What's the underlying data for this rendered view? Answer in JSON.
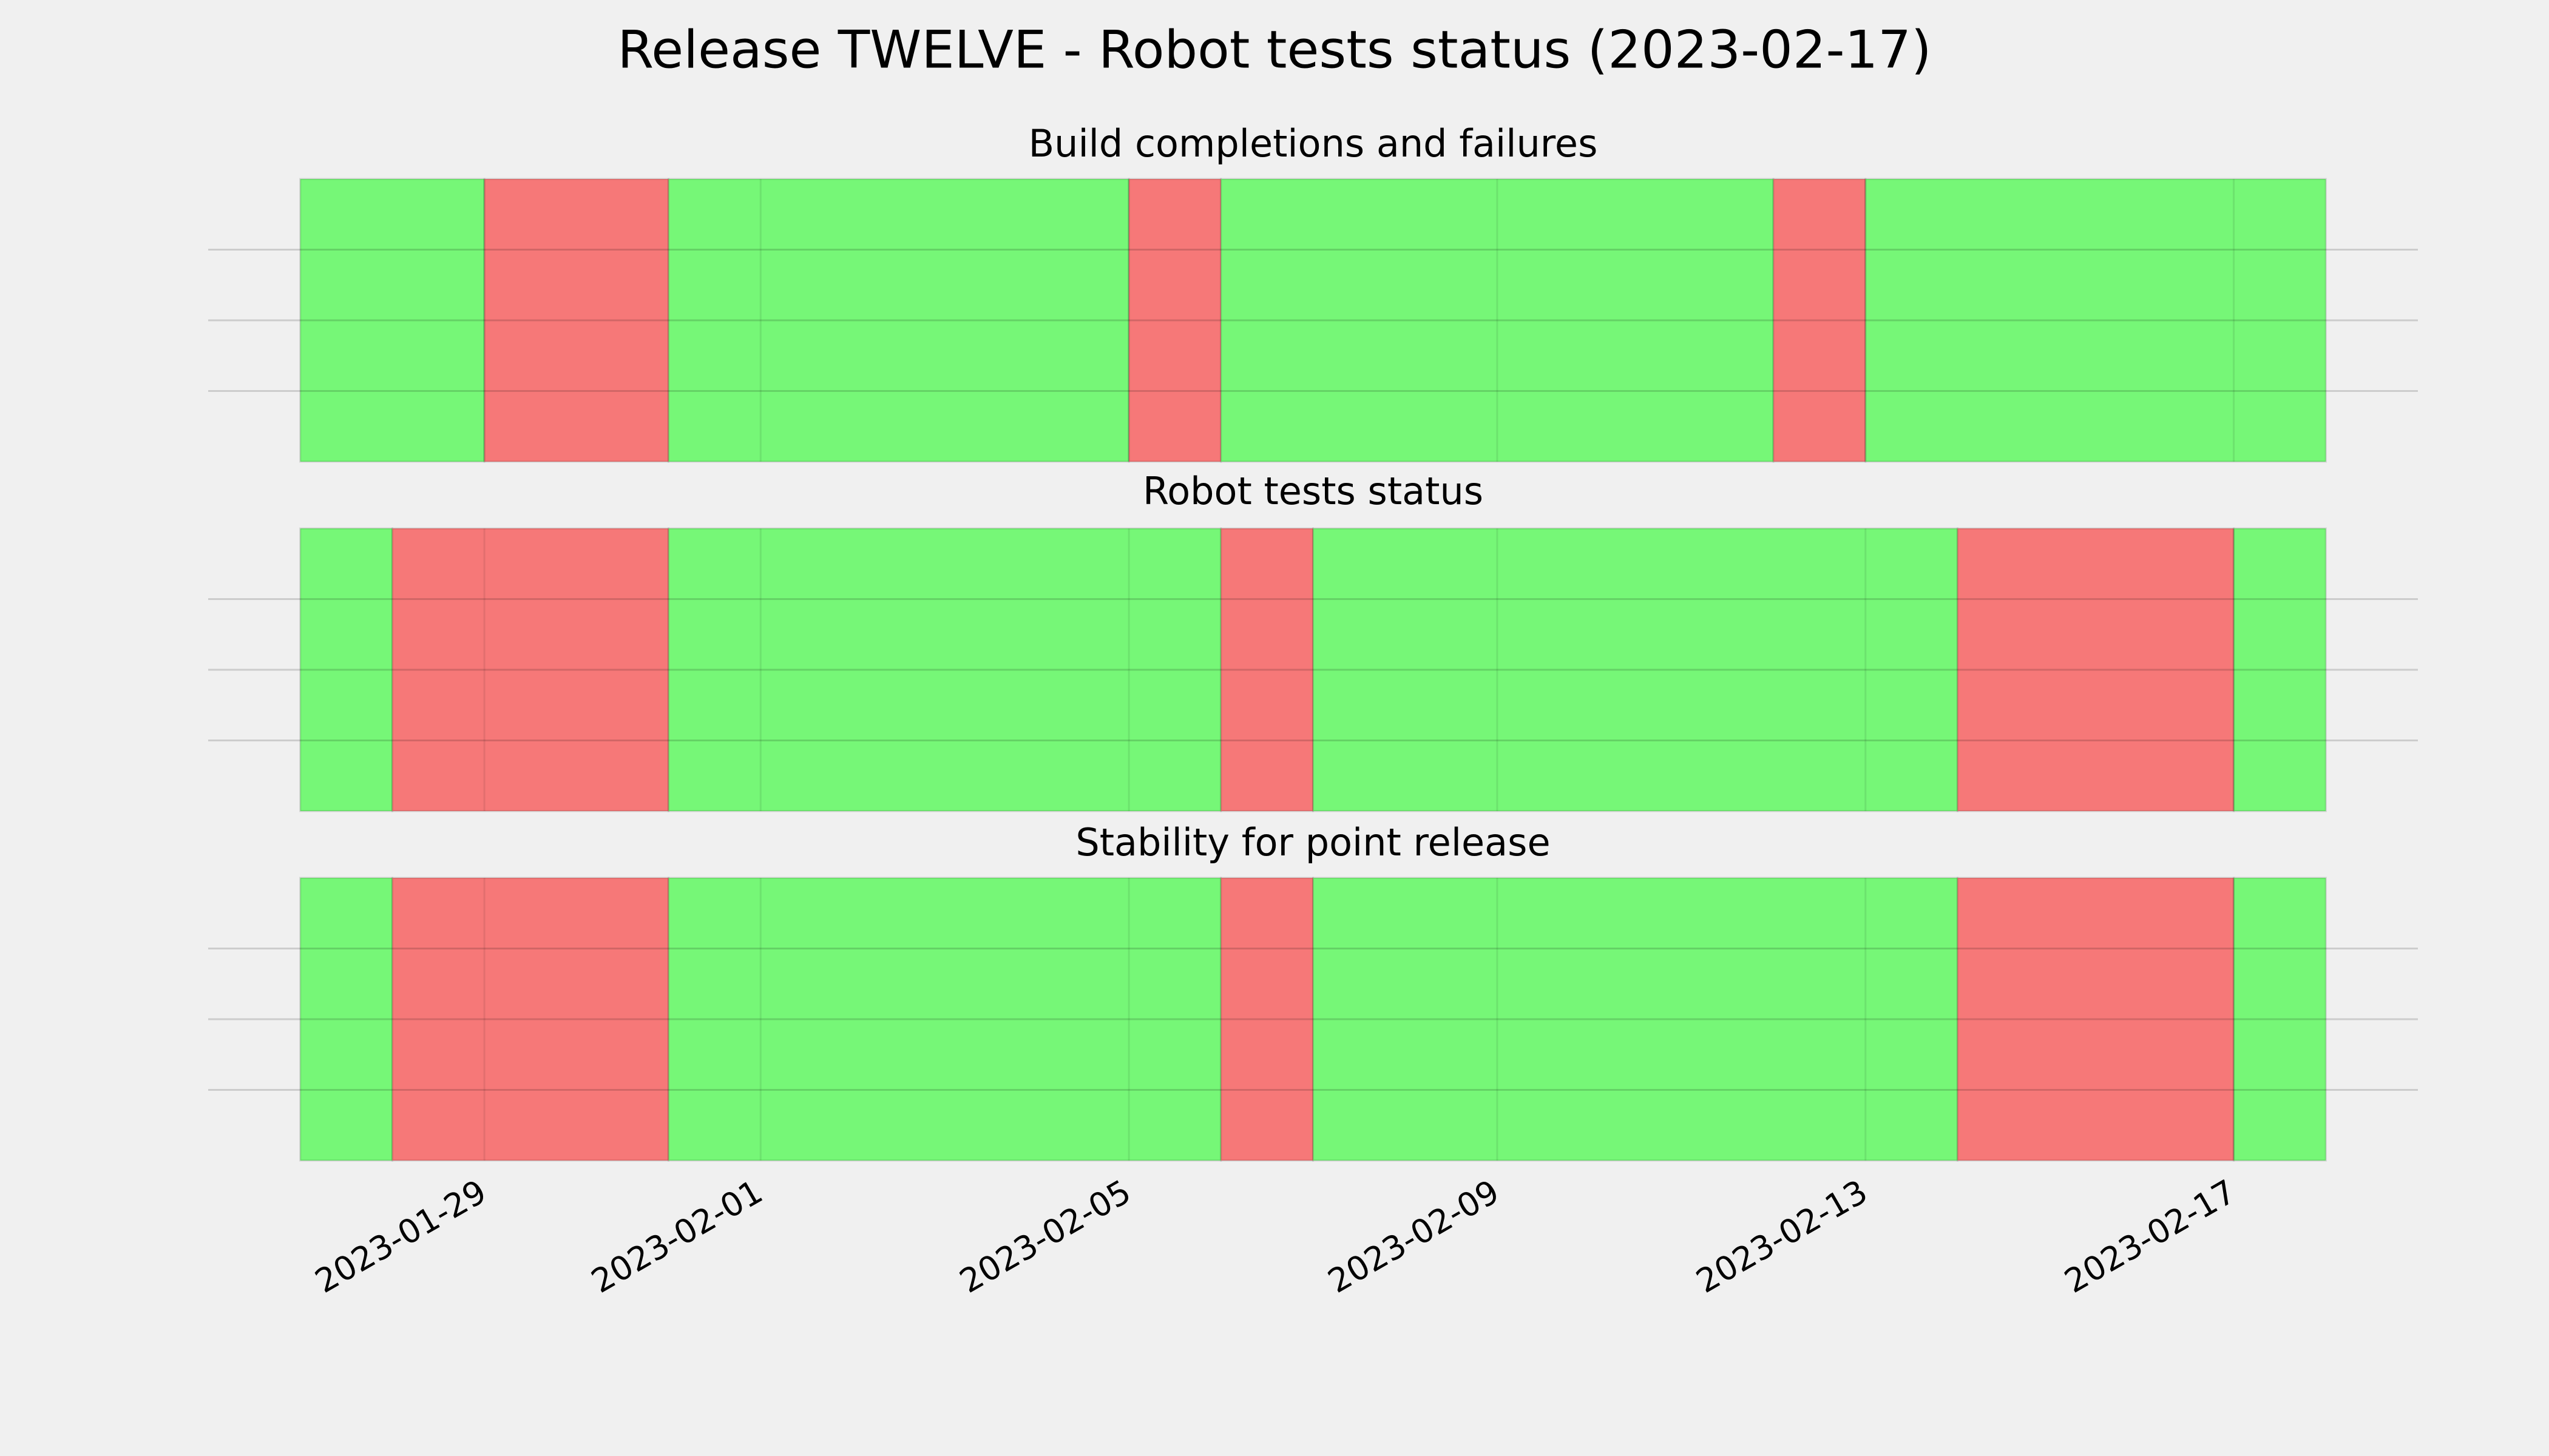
{
  "title": "Release TWELVE - Robot tests status (2023-02-17)",
  "chart_data": [
    {
      "type": "status-timeline",
      "title": "Build completions and failures",
      "x": [
        "2023-01-27",
        "2023-01-29",
        "2023-01-31",
        "2023-02-05",
        "2023-02-06",
        "2023-02-12",
        "2023-02-13"
      ],
      "values": [
        1,
        0,
        1,
        0,
        1,
        0,
        1
      ],
      "x_end": "2023-02-18",
      "colors": [
        "#f67878",
        "#76f777"
      ],
      "xlim": [
        "2023-01-26",
        "2023-02-19"
      ],
      "xticks": [
        "2023-01-29",
        "2023-02-01",
        "2023-02-05",
        "2023-02-09",
        "2023-02-13",
        "2023-02-17"
      ],
      "ylim": [
        0,
        1
      ],
      "yticks": [
        0.25,
        0.5,
        0.75
      ],
      "grid": true
    },
    {
      "type": "status-timeline",
      "title": "Robot tests status",
      "x": [
        "2023-01-27",
        "2023-01-28",
        "2023-01-31",
        "2023-02-06",
        "2023-02-07",
        "2023-02-14",
        "2023-02-17"
      ],
      "values": [
        1,
        0,
        1,
        0,
        1,
        0,
        1
      ],
      "x_end": "2023-02-18",
      "colors": [
        "#f67878",
        "#76f777"
      ],
      "xlim": [
        "2023-01-26",
        "2023-02-19"
      ],
      "xticks": [
        "2023-01-29",
        "2023-02-01",
        "2023-02-05",
        "2023-02-09",
        "2023-02-13",
        "2023-02-17"
      ],
      "ylim": [
        0,
        1
      ],
      "yticks": [
        0.25,
        0.5,
        0.75
      ],
      "grid": true
    },
    {
      "type": "status-timeline",
      "title": "Stability for point release",
      "x": [
        "2023-01-27",
        "2023-01-28",
        "2023-01-31",
        "2023-02-06",
        "2023-02-07",
        "2023-02-14",
        "2023-02-17"
      ],
      "values": [
        1,
        0,
        1,
        0,
        1,
        0,
        1
      ],
      "x_end": "2023-02-18",
      "colors": [
        "#f67878",
        "#76f777"
      ],
      "xlim": [
        "2023-01-26",
        "2023-02-19"
      ],
      "xticks": [
        "2023-01-29",
        "2023-02-01",
        "2023-02-05",
        "2023-02-09",
        "2023-02-13",
        "2023-02-17"
      ],
      "ylim": [
        0,
        1
      ],
      "yticks": [
        0.25,
        0.5,
        0.75
      ],
      "grid": true,
      "show_xtick_labels": true
    }
  ]
}
